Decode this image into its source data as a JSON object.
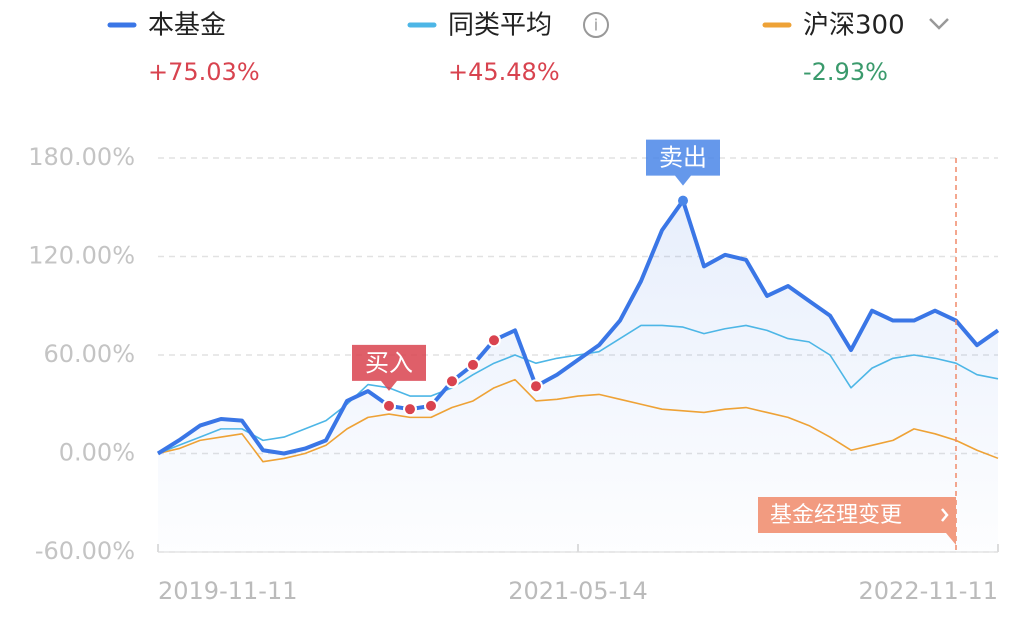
{
  "chart_data": {
    "type": "line",
    "categories": [
      "2019-11-11",
      null,
      null,
      null,
      null,
      null,
      null,
      null,
      null,
      null,
      null,
      null,
      null,
      null,
      null,
      null,
      null,
      null,
      null,
      null,
      "2021-05-14",
      null,
      null,
      null,
      null,
      null,
      null,
      null,
      null,
      null,
      null,
      null,
      null,
      null,
      null,
      null,
      null,
      null,
      null,
      null,
      "2022-11-11"
    ],
    "series": [
      {
        "name": "本基金",
        "color": "#3a76e6",
        "total_return": {
          "value": 75.03,
          "label": "+75.03%"
        },
        "values": [
          0,
          8,
          17,
          21,
          20,
          2,
          0,
          3,
          8,
          32,
          38,
          29,
          27,
          29,
          44,
          54,
          69,
          75,
          41,
          48,
          57,
          66,
          81,
          105,
          136,
          154,
          114,
          121,
          118,
          96,
          102,
          93,
          84,
          63,
          87,
          81,
          81,
          87,
          81,
          66,
          75.03
        ]
      },
      {
        "name": "同类平均",
        "color": "#4db6e6",
        "total_return": {
          "value": 45.48,
          "label": "+45.48%"
        },
        "values": [
          0,
          5,
          10,
          15,
          15,
          8,
          10,
          15,
          20,
          30,
          42,
          40,
          35,
          35,
          40,
          48,
          55,
          60,
          55,
          58,
          60,
          62,
          70,
          78,
          78,
          77,
          73,
          76,
          78,
          75,
          70,
          68,
          60,
          40,
          52,
          58,
          60,
          58,
          55,
          48,
          45.48
        ]
      },
      {
        "name": "沪深300",
        "color": "#eea236",
        "total_return": {
          "value": -2.93,
          "label": "-2.93%"
        },
        "values": [
          0,
          3,
          8,
          10,
          12,
          -5,
          -3,
          0,
          5,
          15,
          22,
          24,
          22,
          22,
          28,
          32,
          40,
          45,
          32,
          33,
          35,
          36,
          33,
          30,
          27,
          26,
          25,
          27,
          28,
          25,
          22,
          17,
          10,
          2,
          5,
          8,
          15,
          12,
          8,
          2,
          -2.93
        ]
      }
    ],
    "ylim": [
      -60,
      180
    ],
    "yticks": [
      {
        "value": -60,
        "label": "-60.00%"
      },
      {
        "value": 0,
        "label": "0.00%"
      },
      {
        "value": 60,
        "label": "60.00%"
      },
      {
        "value": 120,
        "label": "120.00%"
      },
      {
        "value": 180,
        "label": "180.00%"
      }
    ],
    "grid": true,
    "annotations": [
      {
        "text": "买入",
        "points": [
          11,
          12,
          13,
          14,
          15,
          16,
          18
        ]
      },
      {
        "text": "卖出",
        "points": [
          25
        ]
      },
      {
        "text": "基金经理变更",
        "at": 38
      }
    ]
  }
}
